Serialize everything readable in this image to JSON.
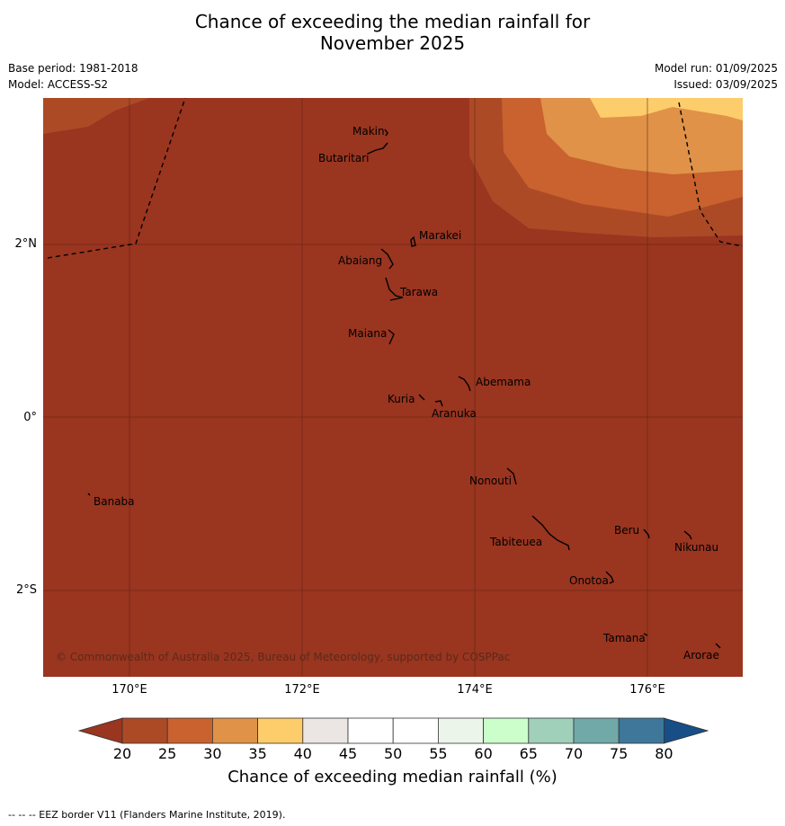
{
  "title_line1": "Chance of exceeding the median rainfall for",
  "title_line2": "November 2025",
  "base_period": "Base period: 1981-2018",
  "model": "Model: ACCESS-S2",
  "model_run": "Model run: 01/09/2025",
  "issued": "Issued: 03/09/2025",
  "x_ticks": [
    "170°E",
    "172°E",
    "174°E",
    "176°E"
  ],
  "y_ticks": [
    "2°N",
    "0°",
    "2°S"
  ],
  "places": {
    "makin": "Makin",
    "butaritari": "Butaritari",
    "marakei": "Marakei",
    "abaiang": "Abaiang",
    "tarawa": "Tarawa",
    "maiana": "Maiana",
    "abemama": "Abemama",
    "kuria": "Kuria",
    "aranuka": "Aranuka",
    "nonouti": "Nonouti",
    "banaba": "Banaba",
    "beru": "Beru",
    "nikunau": "Nikunau",
    "tabiteuea": "Tabiteuea",
    "onotoa": "Onotoa",
    "tamana": "Tamana",
    "arorae": "Arorae"
  },
  "copyright": "© Commonwealth of Australia 2025, Bureau of Meteorology, supported by COSPPac",
  "colorbar": {
    "ticks": [
      "20",
      "25",
      "30",
      "35",
      "40",
      "45",
      "50",
      "55",
      "60",
      "65",
      "70",
      "75",
      "80"
    ],
    "colors": [
      "#ad4a26",
      "#c9622f",
      "#e09248",
      "#fdcc6b",
      "#ebe6e3",
      "#ffffff",
      "#ffffff",
      "#ebf5ea",
      "#ccfecc",
      "#a0cfba",
      "#71a8a8",
      "#3e7799"
    ],
    "under_color": "#9a3520",
    "over_color": "#174e86",
    "label": "Chance of exceeding median rainfall (%)"
  },
  "map_colors": {
    "base": "#9a3520",
    "band_20_25": "#ad4a26",
    "band_25_30": "#c9622f",
    "band_30_35": "#e09248",
    "band_35_40": "#fdcc6b"
  },
  "footer": "--  --  -- EEZ border V11 (Flanders Marine Institute, 2019)."
}
